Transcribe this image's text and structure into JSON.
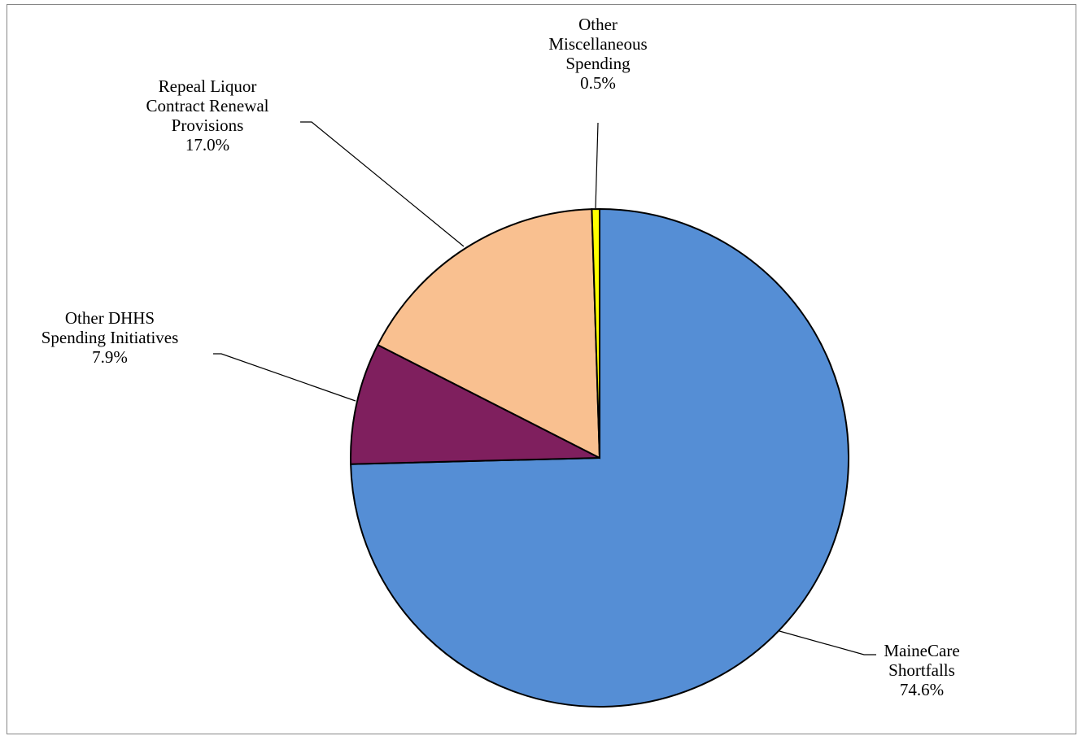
{
  "chart_data": {
    "type": "pie",
    "title": "",
    "legend": "none",
    "slices": [
      {
        "category_lines": [
          "MaineCare",
          "Shortfalls"
        ],
        "percent_label": "74.6%",
        "value": 74.6,
        "color": "#558ED5"
      },
      {
        "category_lines": [
          "Other DHHS",
          "Spending Initiatives"
        ],
        "percent_label": "7.9%",
        "value": 7.9,
        "color": "#7F1F5E"
      },
      {
        "category_lines": [
          "Repeal Liquor",
          "Contract Renewal",
          "Provisions"
        ],
        "percent_label": "17.0%",
        "value": 17.0,
        "color": "#F9C090"
      },
      {
        "category_lines": [
          "Other",
          "Miscellaneous",
          "Spending"
        ],
        "percent_label": "0.5%",
        "value": 0.5,
        "color": "#FFFF00"
      }
    ]
  }
}
